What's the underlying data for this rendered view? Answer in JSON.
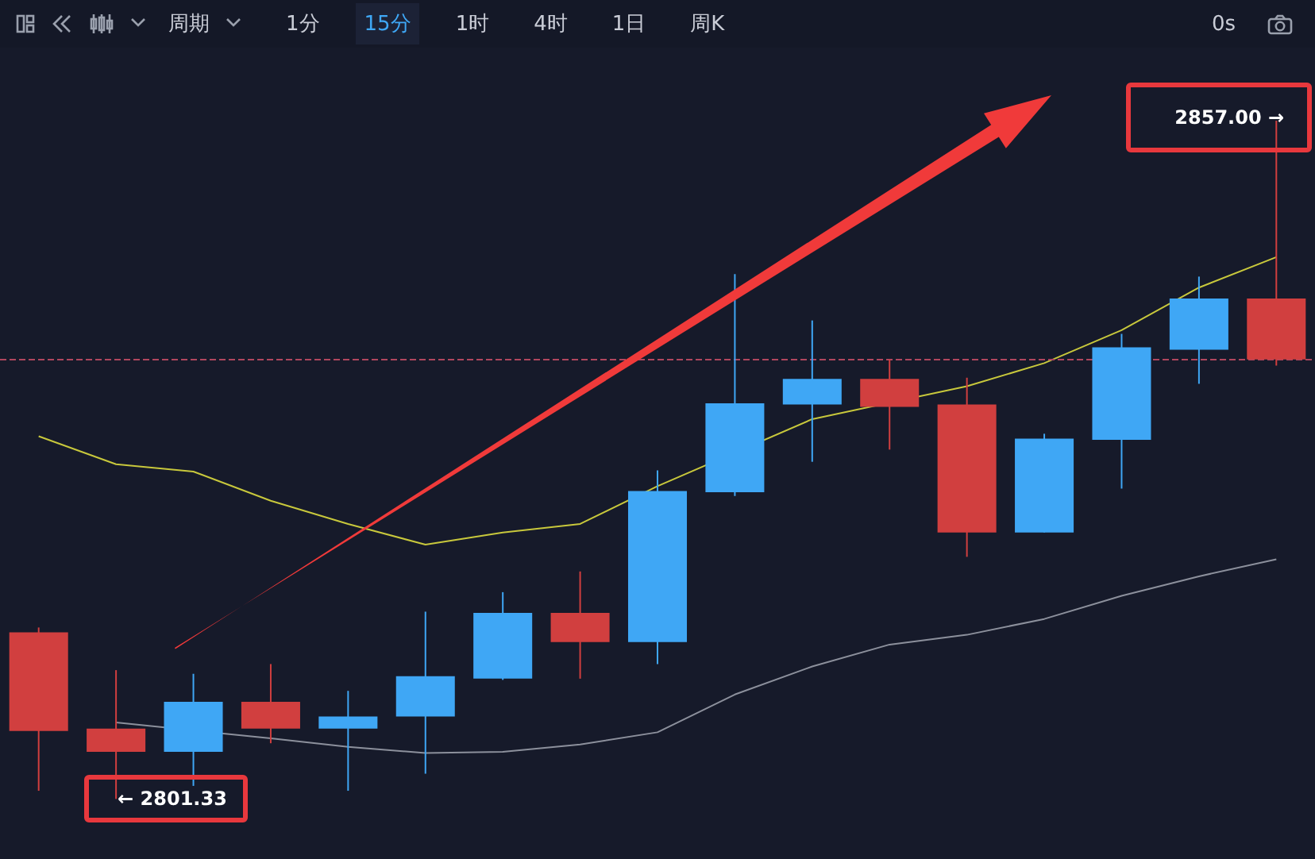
{
  "chart_data": {
    "type": "candlestick",
    "categories": [
      null,
      null,
      null,
      null,
      null,
      null,
      null,
      null,
      null,
      null,
      null,
      null,
      null,
      null,
      null,
      null,
      null
    ],
    "ohlc": [
      [
        2815.0,
        2815.4,
        2802.0,
        2806.9
      ],
      [
        2807.1,
        2811.9,
        2801.33,
        2805.2
      ],
      [
        2805.2,
        2811.6,
        2802.4,
        2809.3
      ],
      [
        2809.3,
        2812.4,
        2805.9,
        2807.1
      ],
      [
        2807.1,
        2810.2,
        2802.0,
        2808.1
      ],
      [
        2808.1,
        2816.7,
        2803.4,
        2811.4
      ],
      [
        2811.2,
        2818.3,
        2811.1,
        2816.6
      ],
      [
        2816.6,
        2820.0,
        2811.2,
        2814.2
      ],
      [
        2814.2,
        2828.3,
        2812.4,
        2826.6
      ],
      [
        2826.5,
        2844.4,
        2826.2,
        2833.8
      ],
      [
        2833.7,
        2840.6,
        2829.0,
        2835.8
      ],
      [
        2835.8,
        2837.4,
        2830.0,
        2833.5
      ],
      [
        2833.7,
        2835.9,
        2821.2,
        2823.2
      ],
      [
        2823.2,
        2831.3,
        2823.2,
        2830.9
      ],
      [
        2830.8,
        2839.5,
        2826.8,
        2838.4
      ],
      [
        2838.2,
        2844.2,
        2835.4,
        2842.4
      ],
      [
        2842.4,
        2857.0,
        2836.9,
        2837.4
      ]
    ],
    "colors": [
      "#d13f3f",
      "#d13f3f",
      "#3fa7f5",
      "#d13f3f",
      "#3fa7f5",
      "#3fa7f5",
      "#3fa7f5",
      "#d13f3f",
      "#3fa7f5",
      "#3fa7f5",
      "#3fa7f5",
      "#d13f3f",
      "#d13f3f",
      "#3fa7f5",
      "#3fa7f5",
      "#3fa7f5",
      "#d13f3f"
    ],
    "series": [
      {
        "type": "line",
        "color": "#c8c83c",
        "values": [
          2831.1,
          2828.8,
          2828.2,
          2825.8,
          2823.9,
          2822.2,
          2823.2,
          2823.9,
          2827.0,
          null,
          2832.5,
          null,
          2835.2,
          2837.1,
          2839.8,
          2843.3,
          2845.8
        ]
      },
      {
        "type": "line",
        "color": "#8c909c",
        "values": [
          null,
          2807.6,
          null,
          2806.3,
          2805.6,
          2805.1,
          2805.2,
          2805.8,
          2806.8,
          2809.9,
          2812.2,
          2814.0,
          2814.8,
          2816.1,
          2818.0,
          2819.6,
          2821.0
        ]
      }
    ],
    "ylim": [
      2796.4,
      2866.9
    ],
    "marker": "none",
    "ref_lines": [
      {
        "axis": "y",
        "value": 2837.4,
        "color": "#b0465e",
        "line_style": "dashed"
      }
    ],
    "annotations": [
      "周期",
      "1分",
      "15分",
      "1时",
      "4时",
      "1日",
      "周K",
      "0s",
      "2857.00 →",
      "← 2801.33"
    ]
  }
}
